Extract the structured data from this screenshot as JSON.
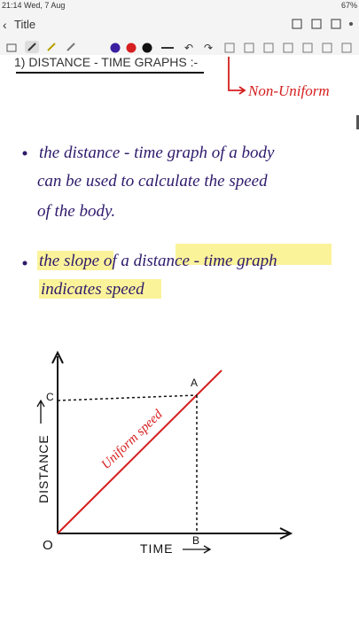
{
  "status_bar": {
    "time": "21:14 Wed, 7 Aug",
    "battery": "67%"
  },
  "header": {
    "title": "Title"
  },
  "notes": {
    "heading": "1) DISTANCE - TIME GRAPHS :-",
    "annotation": "Non-Uniform",
    "bullets": [
      [
        "the distance - time graph of a body",
        "can be used to calculate the speed",
        "of the body."
      ],
      [
        "the slope of a distance - time graph",
        "indicates speed"
      ]
    ]
  },
  "graph": {
    "y_label": "DISTANCE",
    "x_label": "TIME",
    "origin": "O",
    "point_a": "A",
    "point_b": "B",
    "point_c": "C",
    "line_label": "Uniform speed"
  }
}
